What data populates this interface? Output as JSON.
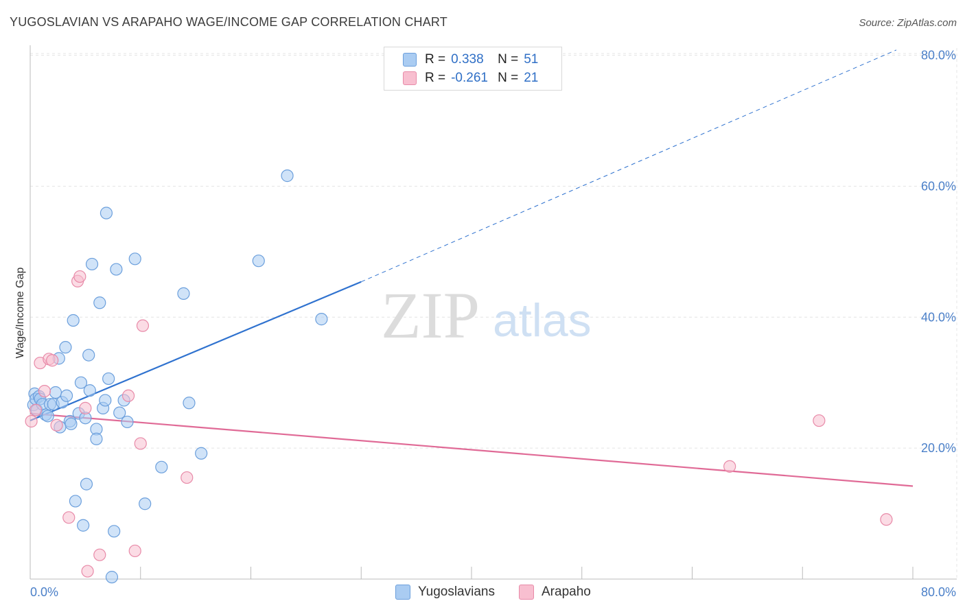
{
  "header": {
    "title": "YUGOSLAVIAN VS ARAPAHO WAGE/INCOME GAP CORRELATION CHART",
    "source": "Source: ZipAtlas.com"
  },
  "legend": {
    "series1": {
      "r_label": "R = ",
      "r_value": "0.338",
      "n_label": "N = ",
      "n_value": "51"
    },
    "series2": {
      "r_label": "R = ",
      "r_value": "-0.261",
      "n_label": "N = ",
      "n_value": "21"
    }
  },
  "bottom_legend": {
    "series1": "Yugoslavians",
    "series2": "Arapaho"
  },
  "watermark": {
    "zip": "ZIP",
    "atlas": "atlas"
  },
  "colors": {
    "blue_fill": "#aaccf2",
    "blue_stroke": "#6b9fdc",
    "blue_line": "#2f72cf",
    "pink_fill": "#f8bfd0",
    "pink_stroke": "#e88aa8",
    "pink_line": "#e06a96",
    "grid": "#e4e4e4",
    "tick_label": "#4a7fc8"
  },
  "chart_data": {
    "type": "scatter",
    "title": "YUGOSLAVIAN VS ARAPAHO WAGE/INCOME GAP CORRELATION CHART",
    "xlabel": "",
    "ylabel": "Wage/Income Gap",
    "xlim": [
      0,
      80
    ],
    "ylim": [
      0,
      80
    ],
    "x_tick_labels": [
      "0.0%",
      "80.0%"
    ],
    "y_ticks": [
      20,
      40,
      60,
      80
    ],
    "y_tick_labels": [
      "20.0%",
      "40.0%",
      "60.0%",
      "80.0%"
    ],
    "grid": true,
    "legend_position": "top-center",
    "series": [
      {
        "name": "Yugoslavians",
        "r": 0.338,
        "n": 51,
        "trend": {
          "x0": 0,
          "y0": 24.2,
          "x1": 30,
          "y1": 45.4,
          "dashed_to_x": 78.5,
          "dashed_to_y": 80.8
        },
        "points": [
          [
            0.3,
            26.6
          ],
          [
            0.4,
            28.3
          ],
          [
            0.5,
            27.5
          ],
          [
            0.6,
            25.8
          ],
          [
            0.8,
            27.9
          ],
          [
            0.9,
            27.5
          ],
          [
            1.1,
            26.7
          ],
          [
            1.4,
            25.1
          ],
          [
            1.6,
            24.9
          ],
          [
            1.8,
            26.7
          ],
          [
            2.1,
            26.7
          ],
          [
            2.3,
            28.5
          ],
          [
            2.6,
            33.7
          ],
          [
            2.7,
            23.2
          ],
          [
            2.9,
            27.0
          ],
          [
            3.2,
            35.4
          ],
          [
            3.3,
            28.0
          ],
          [
            3.6,
            24.1
          ],
          [
            3.7,
            23.7
          ],
          [
            3.9,
            39.5
          ],
          [
            4.1,
            11.9
          ],
          [
            4.4,
            25.3
          ],
          [
            4.6,
            30.0
          ],
          [
            4.8,
            8.2
          ],
          [
            5.0,
            24.6
          ],
          [
            5.1,
            14.5
          ],
          [
            5.3,
            34.2
          ],
          [
            5.4,
            28.8
          ],
          [
            5.6,
            48.1
          ],
          [
            6.0,
            22.9
          ],
          [
            6.0,
            21.4
          ],
          [
            6.3,
            42.2
          ],
          [
            6.6,
            26.1
          ],
          [
            6.8,
            27.3
          ],
          [
            6.9,
            55.9
          ],
          [
            7.1,
            30.6
          ],
          [
            7.4,
            0.3
          ],
          [
            7.6,
            7.3
          ],
          [
            7.8,
            47.3
          ],
          [
            8.1,
            25.4
          ],
          [
            8.5,
            27.3
          ],
          [
            8.8,
            24.0
          ],
          [
            9.5,
            48.9
          ],
          [
            10.4,
            11.5
          ],
          [
            11.9,
            17.1
          ],
          [
            13.9,
            43.6
          ],
          [
            14.4,
            26.9
          ],
          [
            15.5,
            19.2
          ],
          [
            20.7,
            48.6
          ],
          [
            23.3,
            61.6
          ],
          [
            26.4,
            39.7
          ]
        ]
      },
      {
        "name": "Arapaho",
        "r": -0.261,
        "n": 21,
        "trend": {
          "x0": 0,
          "y0": 25.3,
          "x1": 80,
          "y1": 14.2
        },
        "points": [
          [
            0.1,
            24.1
          ],
          [
            0.5,
            25.8
          ],
          [
            0.9,
            33.0
          ],
          [
            1.3,
            28.7
          ],
          [
            1.7,
            33.6
          ],
          [
            2.0,
            33.4
          ],
          [
            2.4,
            23.5
          ],
          [
            3.5,
            9.4
          ],
          [
            4.3,
            45.5
          ],
          [
            4.5,
            46.2
          ],
          [
            5.0,
            26.1
          ],
          [
            5.2,
            1.2
          ],
          [
            6.3,
            3.7
          ],
          [
            8.9,
            28.0
          ],
          [
            9.5,
            4.3
          ],
          [
            10.0,
            20.7
          ],
          [
            10.2,
            38.7
          ],
          [
            14.2,
            15.5
          ],
          [
            63.4,
            17.2
          ],
          [
            71.5,
            24.2
          ],
          [
            77.6,
            9.1
          ]
        ]
      }
    ]
  }
}
